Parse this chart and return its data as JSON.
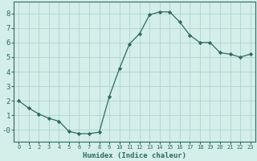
{
  "title": "",
  "xlabel": "Humidex (Indice chaleur)",
  "ylabel": "",
  "x_values": [
    0,
    1,
    2,
    3,
    4,
    5,
    6,
    7,
    8,
    9,
    10,
    11,
    12,
    13,
    14,
    15,
    16,
    17,
    18,
    19,
    20,
    21,
    22,
    23
  ],
  "y_values": [
    2.0,
    1.5,
    1.1,
    0.8,
    0.6,
    -0.1,
    -0.25,
    -0.25,
    -0.15,
    2.3,
    4.2,
    5.9,
    6.6,
    7.9,
    8.1,
    8.1,
    7.4,
    6.5,
    6.0,
    6.0,
    5.3,
    5.2,
    5.0,
    5.2
  ],
  "line_color": "#2e6b5e",
  "marker": "D",
  "marker_size": 2.2,
  "bg_color": "#d4eeea",
  "grid_color": "#b0d4ce",
  "tick_color": "#2e6b5e",
  "label_color": "#2e6b5e",
  "ylim": [
    -0.8,
    8.8
  ],
  "xlim": [
    -0.5,
    23.5
  ],
  "yticks": [
    0,
    1,
    2,
    3,
    4,
    5,
    6,
    7,
    8
  ],
  "ytick_labels": [
    "-0",
    "1",
    "2",
    "3",
    "4",
    "5",
    "6",
    "7",
    "8"
  ],
  "xtick_fontsize": 5.0,
  "ytick_fontsize": 6.5,
  "xlabel_fontsize": 6.5
}
